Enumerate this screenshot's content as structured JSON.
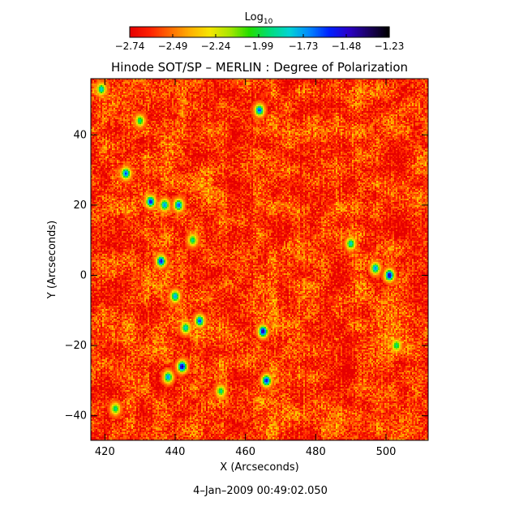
{
  "chart_data": {
    "type": "heatmap",
    "title": "Hinode SOT/SP – MERLIN : Degree of Polarization",
    "xlabel": "X (Arcseconds)",
    "ylabel": "Y (Arcseconds)",
    "timestamp": "4–Jan–2009 00:49:02.050",
    "xlim": [
      416,
      512
    ],
    "ylim": [
      -47,
      56
    ],
    "x_ticks": [
      420,
      440,
      460,
      480,
      500
    ],
    "x_tick_labels": [
      "420",
      "440",
      "460",
      "480",
      "500"
    ],
    "y_ticks": [
      -40,
      -20,
      0,
      20,
      40
    ],
    "y_tick_labels": [
      "−40",
      "−20",
      "0",
      "20",
      "40"
    ],
    "colorbar": {
      "label_main": "Log",
      "label_sub": "10",
      "range": [
        -2.74,
        -1.23
      ],
      "ticks": [
        -2.74,
        -2.49,
        -2.24,
        -1.99,
        -1.73,
        -1.48,
        -1.23
      ],
      "tick_labels": [
        "−2.74",
        "−2.49",
        "−2.24",
        "−1.99",
        "−1.73",
        "−1.48",
        "−1.23"
      ],
      "colormap": [
        "#e60000",
        "#ff2200",
        "#ff6a00",
        "#ffb000",
        "#f5e600",
        "#a8e600",
        "#22dd00",
        "#00dd77",
        "#00d4d4",
        "#0088ff",
        "#0022ff",
        "#2a00c8",
        "#1a0060",
        "#000000"
      ]
    },
    "background_value": -2.6,
    "features": [
      {
        "x": 433,
        "y": 21,
        "value": -1.5
      },
      {
        "x": 437,
        "y": 20,
        "value": -1.7
      },
      {
        "x": 441,
        "y": 20,
        "value": -1.6
      },
      {
        "x": 426,
        "y": 29,
        "value": -1.6
      },
      {
        "x": 436,
        "y": 4,
        "value": -1.5
      },
      {
        "x": 440,
        "y": -6,
        "value": -1.7
      },
      {
        "x": 447,
        "y": -13,
        "value": -1.6
      },
      {
        "x": 442,
        "y": -26,
        "value": -1.4
      },
      {
        "x": 438,
        "y": -29,
        "value": -1.7
      },
      {
        "x": 465,
        "y": -16,
        "value": -1.4
      },
      {
        "x": 466,
        "y": -30,
        "value": -1.5
      },
      {
        "x": 501,
        "y": 0,
        "value": -1.4
      },
      {
        "x": 497,
        "y": 2,
        "value": -1.7
      },
      {
        "x": 464,
        "y": 47,
        "value": -1.6
      },
      {
        "x": 443,
        "y": -15,
        "value": -1.8
      },
      {
        "x": 490,
        "y": 9,
        "value": -1.8
      },
      {
        "x": 419,
        "y": 53,
        "value": -1.8
      },
      {
        "x": 430,
        "y": 44,
        "value": -1.9
      },
      {
        "x": 423,
        "y": -38,
        "value": -1.9
      },
      {
        "x": 503,
        "y": -20,
        "value": -1.9
      },
      {
        "x": 453,
        "y": -33,
        "value": -1.9
      },
      {
        "x": 445,
        "y": 10,
        "value": -1.9
      }
    ]
  }
}
